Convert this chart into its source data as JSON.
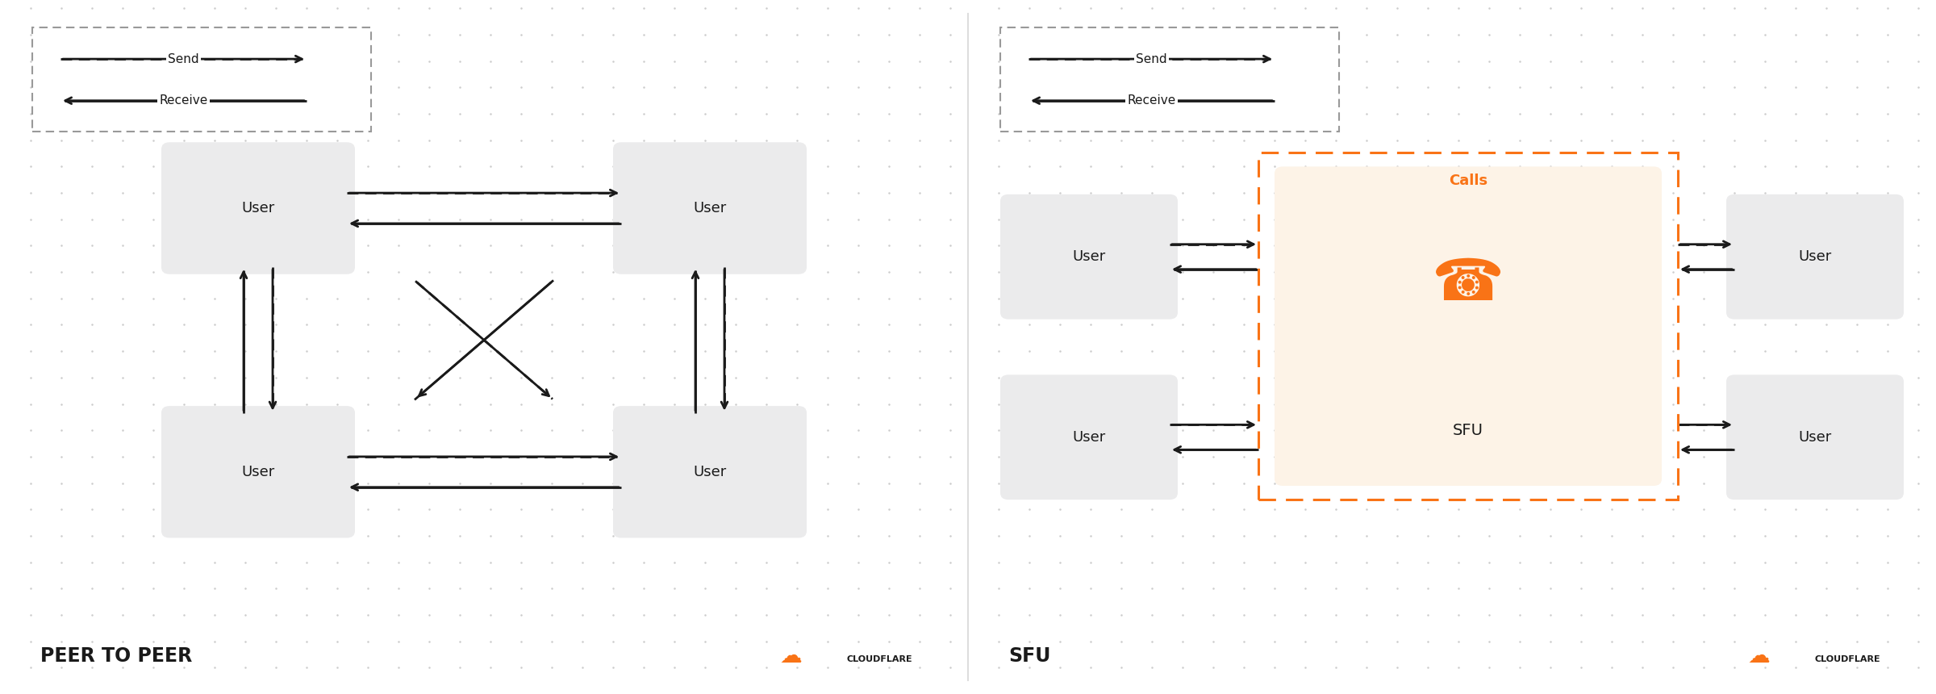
{
  "bg_color": "#f5f5f6",
  "panel_bg": "#ffffff",
  "user_box_color": "#ebebec",
  "calls_box_color": "#fdf3e7",
  "calls_border_color": "#f97316",
  "calls_label_color": "#f97316",
  "arrow_color": "#1a1a1a",
  "text_color": "#1a1a1a",
  "legend_border_color": "#999999",
  "dot_color": "#cccccc",
  "peer_to_peer_label": "PEER TO PEER",
  "sfu_label": "SFU",
  "send_label": "Send",
  "receive_label": "Receive",
  "calls_text": "Calls",
  "sfu_text": "SFU",
  "user_text": "User",
  "cloudflare_color": "#f97316",
  "cloudflare_label": "CLOUDFLARE",
  "divider_color": "#dddddd"
}
